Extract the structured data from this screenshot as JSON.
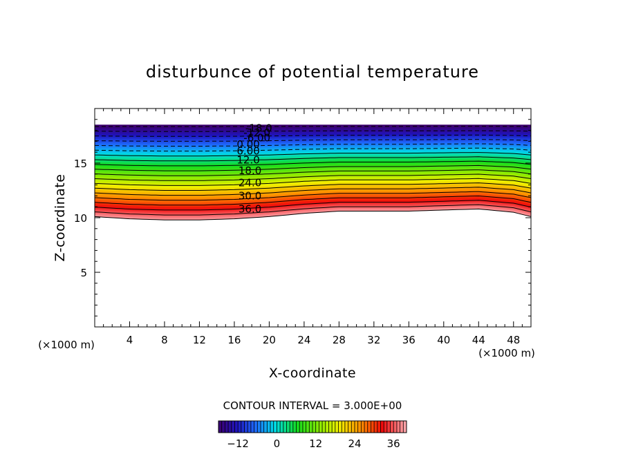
{
  "chart_data": {
    "type": "contour",
    "title": "disturbunce of potential temperature",
    "xlabel": "X-coordinate",
    "ylabel": "Z-coordinate",
    "x_unit": "(×1000 m)",
    "y_unit": "(×1000 m)",
    "xlim": [
      0,
      50
    ],
    "ylim": [
      0,
      20
    ],
    "x_ticks": [
      4,
      8,
      12,
      16,
      20,
      24,
      28,
      32,
      36,
      40,
      44,
      48
    ],
    "y_ticks": [
      5,
      10,
      15
    ],
    "contour_interval_text": "CONTOUR INTERVAL = 3.000E+00",
    "contour_levels": [
      -18,
      -15,
      -12,
      -9,
      -6,
      -3,
      0,
      3,
      6,
      9,
      12,
      15,
      18,
      21,
      24,
      27,
      30,
      33,
      36,
      39
    ],
    "field_top_z": 18.5,
    "bottom_boundary": {
      "x": [
        0,
        4,
        8,
        12,
        16,
        20,
        24,
        28,
        32,
        36,
        40,
        44,
        48,
        50
      ],
      "z": [
        10.1,
        9.9,
        9.8,
        9.8,
        9.9,
        10.1,
        10.4,
        10.6,
        10.6,
        10.6,
        10.7,
        10.8,
        10.5,
        10.1
      ]
    },
    "contour_labels": [
      {
        "text": "-18.0",
        "x": 18.8,
        "z": 18.2
      },
      {
        "text": "-12.0",
        "x": 18.6,
        "z": 17.8
      },
      {
        "text": "-6.00",
        "x": 18.6,
        "z": 17.3
      },
      {
        "text": "0.00",
        "x": 17.6,
        "z": 16.7
      },
      {
        "text": "6.00",
        "x": 17.6,
        "z": 16.1
      },
      {
        "text": "12.0",
        "x": 17.6,
        "z": 15.3
      },
      {
        "text": "18.0",
        "x": 17.8,
        "z": 14.3
      },
      {
        "text": "24.0",
        "x": 17.8,
        "z": 13.2
      },
      {
        "text": "30.0",
        "x": 17.8,
        "z": 12.0
      },
      {
        "text": "36.0",
        "x": 17.8,
        "z": 10.8
      }
    ],
    "colorbar": {
      "range": [
        -18,
        40
      ],
      "tick_values": [
        -12,
        0,
        12,
        24,
        36
      ],
      "tick_labels": [
        "−12",
        "0",
        "12",
        "24",
        "36"
      ]
    }
  }
}
